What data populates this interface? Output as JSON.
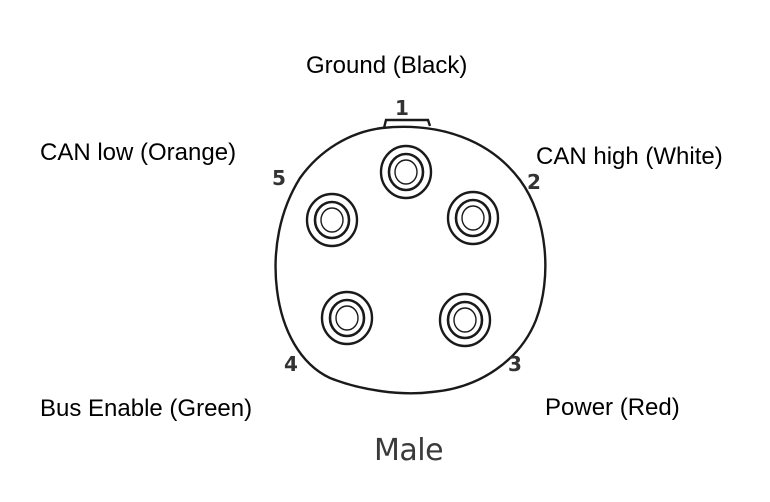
{
  "diagram": {
    "gender": "Male",
    "pins": [
      {
        "number": "1",
        "label": "Ground (Black)"
      },
      {
        "number": "2",
        "label": "CAN high (White)"
      },
      {
        "number": "3",
        "label": "Power (Red)"
      },
      {
        "number": "4",
        "label": "Bus Enable (Green)"
      },
      {
        "number": "5",
        "label": "CAN low (Orange)"
      }
    ]
  }
}
